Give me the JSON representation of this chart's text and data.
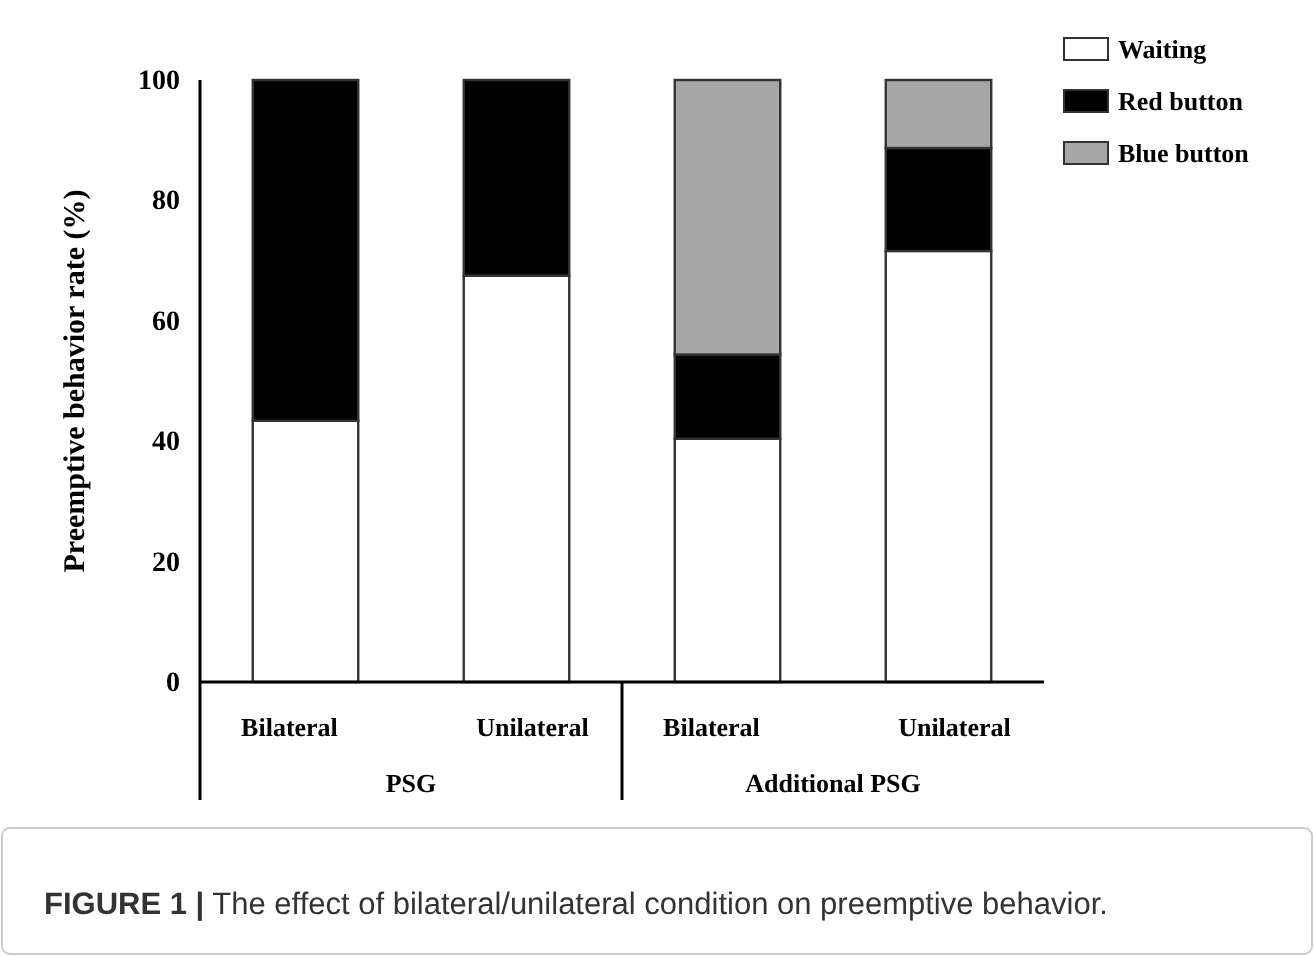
{
  "chart_data": {
    "type": "bar",
    "stacked": true,
    "ylabel": "Preemptive  behavior  rate (%)",
    "categories": [
      "Bilateral",
      "Unilateral",
      "Bilateral",
      "Unilateral"
    ],
    "series": [
      {
        "name": "Waiting",
        "color": "#ffffff",
        "values": [
          43.4,
          67.5,
          40.4,
          71.6
        ]
      },
      {
        "name": "Red button",
        "color": "#000000",
        "values": [
          56.6,
          32.5,
          14,
          17.1
        ]
      },
      {
        "name": "Blue button",
        "color": "#a6a6a6",
        "values": [
          0,
          0,
          45.6,
          11.3
        ]
      }
    ],
    "ylim": [
      0,
      100
    ],
    "yticks": [
      0,
      20,
      40,
      60,
      80,
      100
    ],
    "grid": false,
    "legend": "top right",
    "annotations": [
      "PSG",
      "Additional PSG",
      "FIGURE 1 | The effect of bilateral/unilateral condition on preemptive behavior."
    ]
  }
}
